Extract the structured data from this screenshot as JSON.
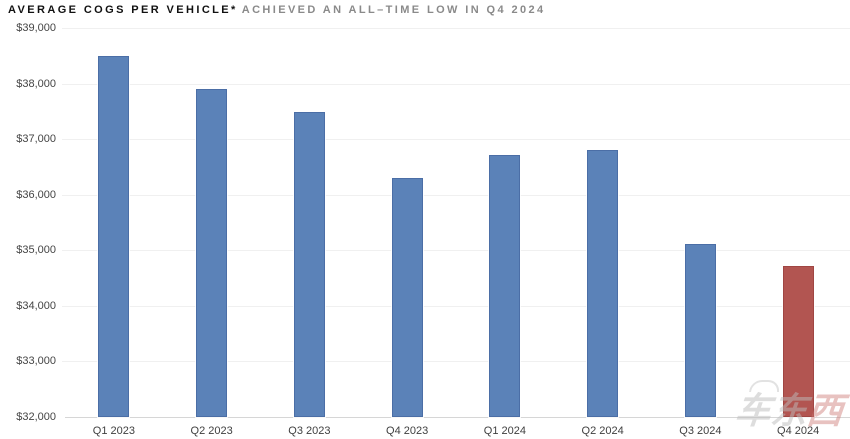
{
  "title": {
    "main": "AVERAGE COGS PER VEHICLE*",
    "sub": "ACHIEVED AN ALL–TIME LOW IN Q4 2024"
  },
  "watermark": {
    "text": "车东西",
    "gray_part": "车东",
    "red_part": "西"
  },
  "colors": {
    "bar_blue": "#5b82b8",
    "bar_blue_border": "#4b6ea6",
    "bar_red": "#b25551",
    "bar_red_border": "#a04643",
    "title_main_text": "#111111",
    "title_sub_text": "#8a8a8a",
    "axis_text": "#454545",
    "gridline": "#f0f0f0",
    "axis_line": "#d6d6d6"
  },
  "chart_data": {
    "type": "bar",
    "title": "AVERAGE COGS PER VEHICLE* ACHIEVED AN ALL–TIME LOW IN Q4 2024",
    "categories": [
      "Q1 2023",
      "Q2 2023",
      "Q3 2023",
      "Q4 2023",
      "Q1 2024",
      "Q2 2024",
      "Q3 2024",
      "Q4 2024"
    ],
    "values": [
      38500,
      37900,
      37490,
      36300,
      36720,
      36810,
      35110,
      34720
    ],
    "highlight_category": "Q4 2024",
    "xlabel": "",
    "ylabel": "",
    "ylim": [
      32000,
      39000
    ],
    "ytick_step": 1000,
    "ytick_labels": [
      "$32,000",
      "$33,000",
      "$34,000",
      "$35,000",
      "$36,000",
      "$37,000",
      "$38,000",
      "$39,000"
    ],
    "grid": true,
    "legend": false
  }
}
